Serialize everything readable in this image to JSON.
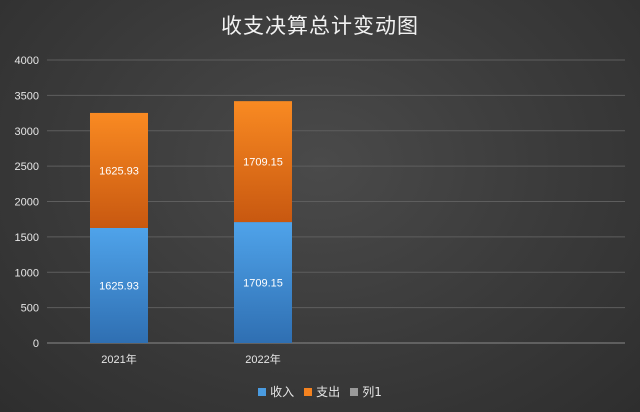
{
  "chart_data": {
    "type": "bar",
    "stacked": true,
    "title": "收支决算总计变动图",
    "categories": [
      "2021年",
      "2022年"
    ],
    "series": [
      {
        "name": "收入",
        "values": [
          1625.93,
          1709.15
        ],
        "color": "#4a9be0"
      },
      {
        "name": "支出",
        "values": [
          1625.93,
          1709.15
        ],
        "color": "#f4821f"
      },
      {
        "name": "列1",
        "values": [
          0,
          0
        ],
        "color": "#9a9a9a"
      }
    ],
    "ylim": [
      0,
      4000
    ],
    "yticks": [
      0,
      500,
      1000,
      1500,
      2000,
      2500,
      3000,
      3500,
      4000
    ],
    "grid": true,
    "legend": "bottom"
  }
}
